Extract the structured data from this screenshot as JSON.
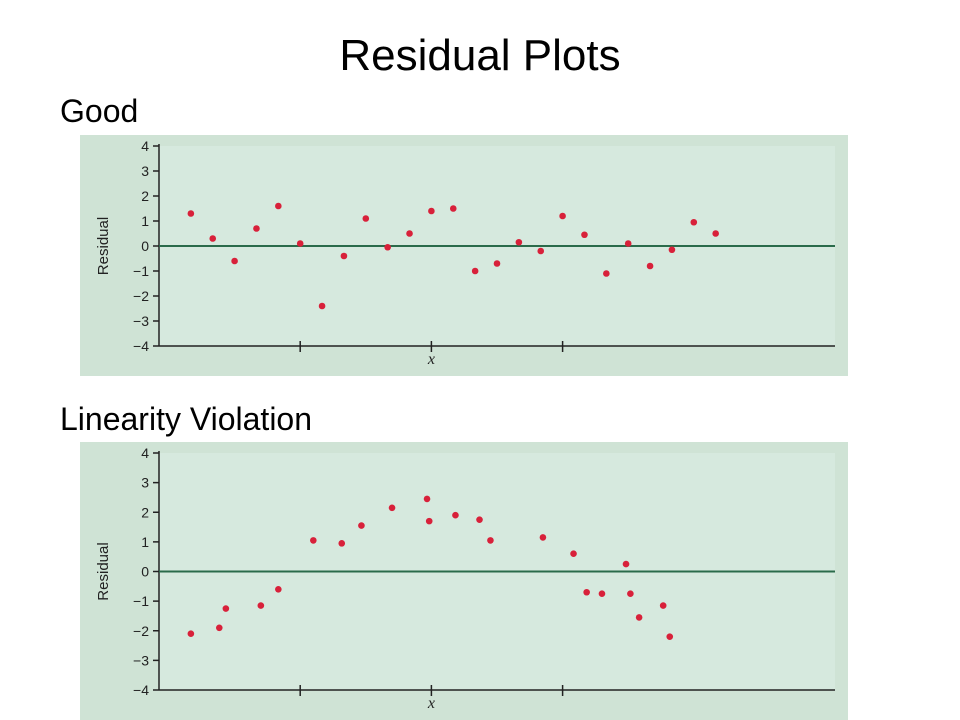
{
  "slide": {
    "title": "Residual Plots",
    "sections": [
      {
        "label": "Good"
      },
      {
        "label": "Linearity Violation"
      }
    ]
  },
  "colors": {
    "panel_background": "#cfe3d5",
    "plot_background": "#d6e9de",
    "point": "#d8213a",
    "zero_line": "#2a6b4a",
    "axis": "#222222"
  },
  "chart_data": [
    {
      "type": "scatter",
      "title": "",
      "xlabel": "x",
      "ylabel": "Residual",
      "ylim": [
        -4,
        4
      ],
      "yticks": [
        "4",
        "3",
        "2",
        "1",
        "0",
        "−1",
        "−2",
        "−3",
        "−4"
      ],
      "xlim": [
        0,
        30
      ],
      "x_major_ticks": [
        6,
        12,
        18
      ],
      "x_tick_labels": "none",
      "zero_line": 0,
      "grid": false,
      "points": [
        {
          "x": 1,
          "y": 1.3
        },
        {
          "x": 2,
          "y": 0.3
        },
        {
          "x": 3,
          "y": -0.6
        },
        {
          "x": 4,
          "y": 0.7
        },
        {
          "x": 5,
          "y": 1.6
        },
        {
          "x": 6,
          "y": 0.1
        },
        {
          "x": 7,
          "y": -2.4
        },
        {
          "x": 8,
          "y": -0.4
        },
        {
          "x": 9,
          "y": 1.1
        },
        {
          "x": 10,
          "y": -0.05
        },
        {
          "x": 11,
          "y": 0.5
        },
        {
          "x": 12,
          "y": 1.4
        },
        {
          "x": 13,
          "y": 1.5
        },
        {
          "x": 14,
          "y": -1.0
        },
        {
          "x": 15,
          "y": -0.7
        },
        {
          "x": 16,
          "y": 0.15
        },
        {
          "x": 17,
          "y": -0.2
        },
        {
          "x": 18,
          "y": 1.2
        },
        {
          "x": 19,
          "y": 0.45
        },
        {
          "x": 20,
          "y": -1.1
        },
        {
          "x": 21,
          "y": 0.1
        },
        {
          "x": 22,
          "y": -0.8
        },
        {
          "x": 23,
          "y": -0.15
        },
        {
          "x": 24,
          "y": 0.95
        },
        {
          "x": 25,
          "y": 0.5
        }
      ]
    },
    {
      "type": "scatter",
      "title": "",
      "xlabel": "x",
      "ylabel": "Residual",
      "ylim": [
        -4,
        4
      ],
      "yticks": [
        "4",
        "3",
        "2",
        "1",
        "0",
        "−1",
        "−2",
        "−3",
        "−4"
      ],
      "xlim": [
        0,
        30
      ],
      "x_major_ticks": [
        6,
        12,
        18
      ],
      "x_tick_labels": "none",
      "zero_line": 0,
      "grid": false,
      "points": [
        {
          "x": 1,
          "y": -2.1
        },
        {
          "x": 2.3,
          "y": -1.9
        },
        {
          "x": 2.6,
          "y": -1.25
        },
        {
          "x": 4.2,
          "y": -1.15
        },
        {
          "x": 5,
          "y": -0.6
        },
        {
          "x": 6.6,
          "y": 1.05
        },
        {
          "x": 7.9,
          "y": 0.95
        },
        {
          "x": 8.8,
          "y": 1.55
        },
        {
          "x": 10.2,
          "y": 2.15
        },
        {
          "x": 11.8,
          "y": 2.45
        },
        {
          "x": 11.9,
          "y": 1.7
        },
        {
          "x": 13.1,
          "y": 1.9
        },
        {
          "x": 14.2,
          "y": 1.75
        },
        {
          "x": 14.7,
          "y": 1.05
        },
        {
          "x": 17.1,
          "y": 1.15
        },
        {
          "x": 18.5,
          "y": 0.6
        },
        {
          "x": 19.1,
          "y": -0.7
        },
        {
          "x": 19.8,
          "y": -0.75
        },
        {
          "x": 20.9,
          "y": 0.25
        },
        {
          "x": 21.1,
          "y": -0.75
        },
        {
          "x": 21.5,
          "y": -1.55
        },
        {
          "x": 22.6,
          "y": -1.15
        },
        {
          "x": 22.9,
          "y": -2.2
        }
      ]
    }
  ]
}
